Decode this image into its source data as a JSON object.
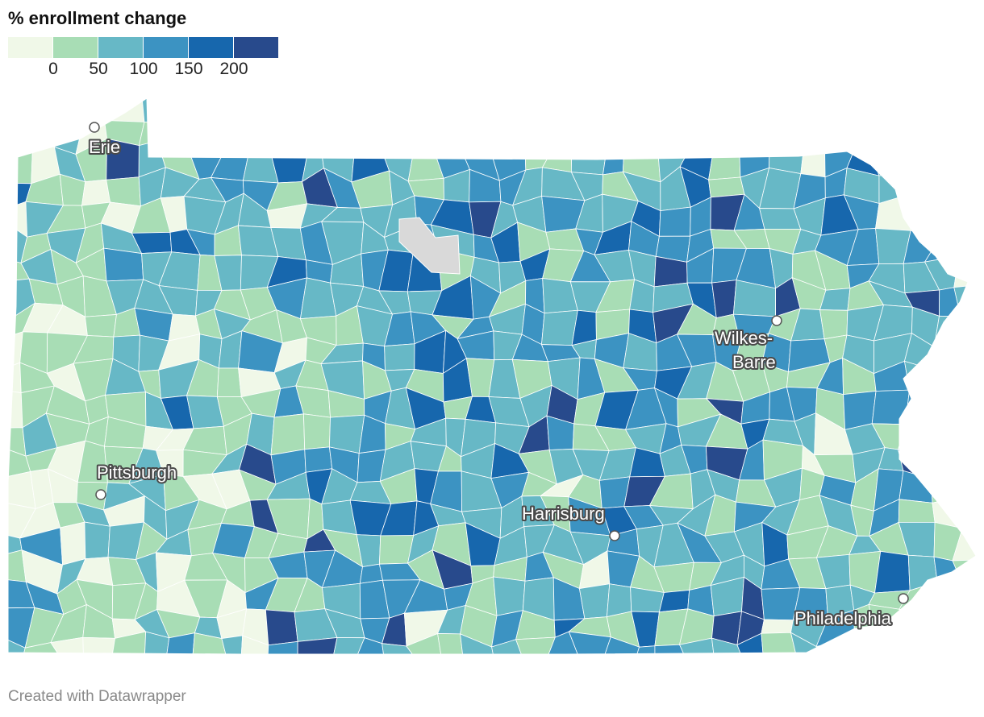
{
  "legend": {
    "title": "% enrollment change",
    "bins": [
      {
        "color": "#f0f8e8"
      },
      {
        "color": "#a8ddb5"
      },
      {
        "color": "#67b8c6"
      },
      {
        "color": "#3c93c2"
      },
      {
        "color": "#1767ad"
      },
      {
        "color": "#284a8c"
      }
    ],
    "ticks": [
      "0",
      "50",
      "100",
      "150",
      "200"
    ],
    "no_data_color": "#d9d9d9"
  },
  "map": {
    "region": "Pennsylvania",
    "cities": [
      {
        "name": "Erie",
        "label": "Erie"
      },
      {
        "name": "Wilkes-Barre",
        "label_lines": [
          "Wilkes-",
          "Barre"
        ]
      },
      {
        "name": "Pittsburgh",
        "label": "Pittsburgh"
      },
      {
        "name": "Harrisburg",
        "label": "Harrisburg"
      },
      {
        "name": "Philadelphia",
        "label": "Philadelphia"
      }
    ]
  },
  "footer": {
    "credit": "Created with Datawrapper"
  }
}
